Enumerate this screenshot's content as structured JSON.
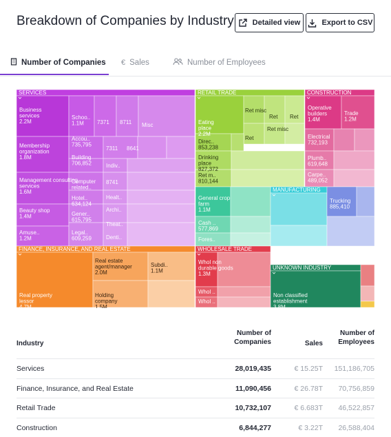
{
  "header": {
    "title": "Breakdown of Companies by Industry",
    "detailed_view_label": "Detailed view",
    "export_label": "Export to CSV"
  },
  "tabs": [
    {
      "label": "Number of Companies",
      "icon": "building-icon",
      "active": true
    },
    {
      "label": "Sales",
      "icon": "euro-icon",
      "active": false
    },
    {
      "label": "Number of Employees",
      "icon": "people-icon",
      "active": false
    }
  ],
  "chart_data": {
    "type": "treemap",
    "metric": "Number of Companies",
    "groups": [
      {
        "name": "SERVICES",
        "color": "#c03fe0",
        "labels": [
          {
            "name": "Business services",
            "value": "2.2M"
          },
          {
            "name": "Schoo..",
            "value": "1.1M"
          },
          {
            "name": "7371",
            "value": ""
          },
          {
            "name": "8711",
            "value": ""
          },
          {
            "name": "Misc",
            "value": ""
          },
          {
            "name": "Membership organization",
            "value": "1.8M"
          },
          {
            "name": "Accou..",
            "value": "735,795"
          },
          {
            "name": "7311",
            "value": ""
          },
          {
            "name": "8641",
            "value": ""
          },
          {
            "name": "Building",
            "value": "706,852"
          },
          {
            "name": "Indiv..",
            "value": ""
          },
          {
            "name": "Management consulting services",
            "value": "1.6M"
          },
          {
            "name": "Computer related..",
            "value": ""
          },
          {
            "name": "8741",
            "value": ""
          },
          {
            "name": "Hotel..",
            "value": "634,124"
          },
          {
            "name": "Healt..",
            "value": ""
          },
          {
            "name": "Beauty shop",
            "value": "1.4M"
          },
          {
            "name": "Gener..",
            "value": "615,795"
          },
          {
            "name": "Archi..",
            "value": ""
          },
          {
            "name": "Theat..",
            "value": ""
          },
          {
            "name": "Amuse..",
            "value": "1.2M"
          },
          {
            "name": "Legal..",
            "value": "609,259"
          },
          {
            "name": "Denti..",
            "value": ""
          }
        ]
      },
      {
        "name": "RETAIL TRADE",
        "color": "#9ad13c",
        "labels": [
          {
            "name": "Eating place",
            "value": "2.2M"
          },
          {
            "name": "Ret misc",
            "value": ""
          },
          {
            "name": "Ret",
            "value": ""
          },
          {
            "name": "Ret",
            "value": ""
          },
          {
            "name": "Ret",
            "value": ""
          },
          {
            "name": "Ret misc",
            "value": ""
          },
          {
            "name": "Direc..",
            "value": "853,238"
          },
          {
            "name": "Drinking place",
            "value": "827,372"
          },
          {
            "name": "Ret m..",
            "value": "810,144"
          }
        ]
      },
      {
        "name": "CONSTRUCTION",
        "color": "#dc3a86",
        "labels": [
          {
            "name": "Operative builders",
            "value": "1.4M"
          },
          {
            "name": "Trade",
            "value": "1.2M"
          },
          {
            "name": "Electrical",
            "value": "732,193"
          },
          {
            "name": "Plumb..",
            "value": "619,648"
          },
          {
            "name": "Carpe..",
            "value": "489,052"
          }
        ]
      },
      {
        "name": "MANUFACTURING",
        "color": "#36cdd8",
        "labels": [
          {
            "name": "General crop farm",
            "value": "1.1M"
          },
          {
            "name": "Cash ..",
            "value": "577,869"
          },
          {
            "name": "Fores..",
            "value": ""
          },
          {
            "name": "Trucking",
            "value": "885,410"
          }
        ]
      },
      {
        "name": "FINANCE, INSURANCE, AND REAL ESTATE",
        "color": "#f58a2c",
        "labels": [
          {
            "name": "Real property lessor",
            "value": "4.7M"
          },
          {
            "name": "Real estate agent/manager",
            "value": "2.0M"
          },
          {
            "name": "Subdi..",
            "value": "1.1M"
          },
          {
            "name": "Holding company",
            "value": "1.5M"
          }
        ]
      },
      {
        "name": "WHOLESALE TRADE",
        "color": "#e23c4c",
        "labels": [
          {
            "name": "Whol non durable goods",
            "value": "1.3M"
          },
          {
            "name": "Whol ..",
            "value": ""
          },
          {
            "name": "Whol ..",
            "value": ""
          }
        ]
      },
      {
        "name": "UNKNOWN INDUSTRY",
        "color": "#20875e",
        "labels": [
          {
            "name": "Non classified establishment",
            "value": "3.8M"
          }
        ]
      }
    ]
  },
  "table": {
    "columns": [
      "Industry",
      "Number of Companies",
      "Sales",
      "Number of Employees"
    ],
    "rows": [
      {
        "industry": "Services",
        "companies": "28,019,435",
        "sales": "€ 15.25T",
        "employees": "151,186,705"
      },
      {
        "industry": "Finance, Insurance, and Real Estate",
        "companies": "11,090,456",
        "sales": "€ 26.78T",
        "employees": "70,756,859"
      },
      {
        "industry": "Retail Trade",
        "companies": "10,732,107",
        "sales": "€ 6.683T",
        "employees": "46,522,857"
      },
      {
        "industry": "Construction",
        "companies": "6,844,277",
        "sales": "€ 3.22T",
        "employees": "26,588,404"
      }
    ]
  },
  "colors": {
    "accent": "#7a3fd1",
    "text": "#232733",
    "muted": "#9aa0aa"
  }
}
